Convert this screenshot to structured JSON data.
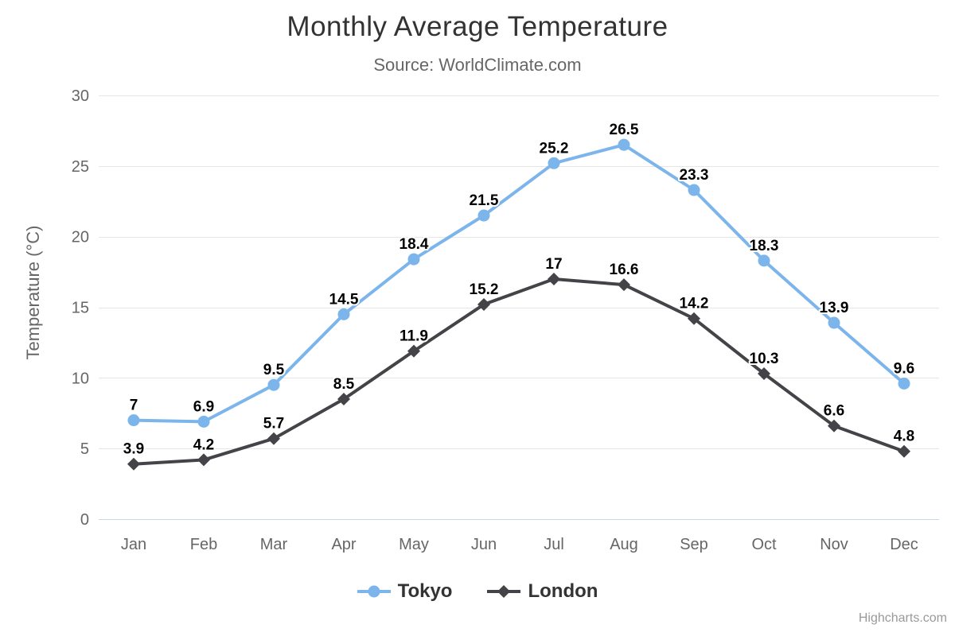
{
  "credits": "Highcharts.com",
  "colors": {
    "background": "#ffffff",
    "title": "#333333",
    "subtitle": "#666666",
    "axis_text": "#666666",
    "grid": "#e6e6e6",
    "axis_line": "#ccd6eb",
    "data_label": "#000000",
    "legend_text": "#333333",
    "credits": "#999999",
    "tokyo": "#7cb5ec",
    "london": "#434348"
  },
  "chart_data": {
    "type": "line",
    "title": "Monthly Average Temperature",
    "subtitle": "Source: WorldClimate.com",
    "categories": [
      "Jan",
      "Feb",
      "Mar",
      "Apr",
      "May",
      "Jun",
      "Jul",
      "Aug",
      "Sep",
      "Oct",
      "Nov",
      "Dec"
    ],
    "series": [
      {
        "name": "Tokyo",
        "color": "#7cb5ec",
        "marker": "circle",
        "values": [
          7,
          6.9,
          9.5,
          14.5,
          18.4,
          21.5,
          25.2,
          26.5,
          23.3,
          18.3,
          13.9,
          9.6
        ]
      },
      {
        "name": "London",
        "color": "#434348",
        "marker": "diamond",
        "values": [
          3.9,
          4.2,
          5.7,
          8.5,
          11.9,
          15.2,
          17,
          16.6,
          14.2,
          10.3,
          6.6,
          4.8
        ]
      }
    ],
    "xlabel": "",
    "ylabel": "Temperature (°C)",
    "ylim": [
      0,
      30
    ],
    "yticks": [
      0,
      5,
      10,
      15,
      20,
      25,
      30
    ],
    "grid": true,
    "data_labels": true,
    "legend_position": "bottom"
  }
}
